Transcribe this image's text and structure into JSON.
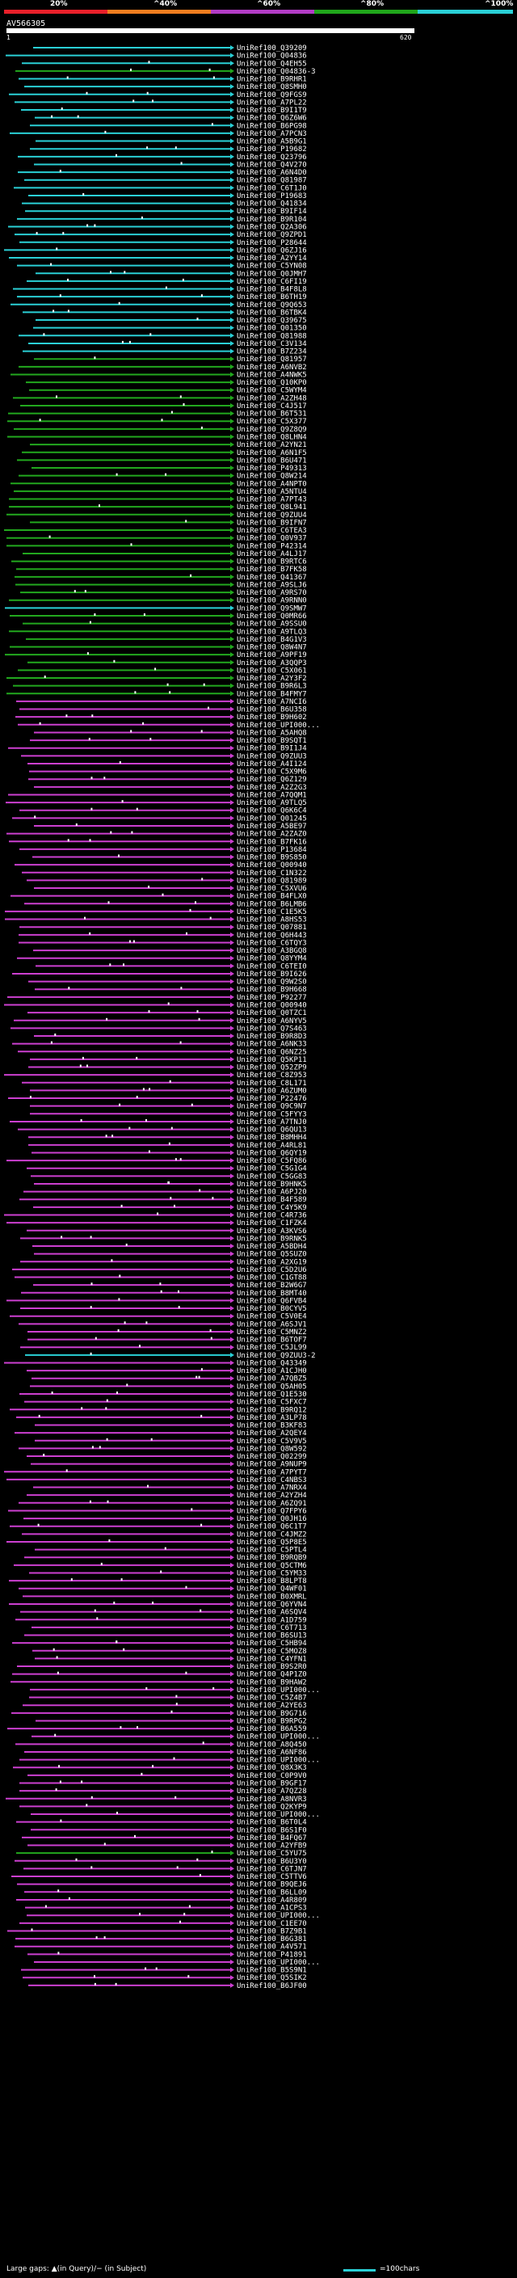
{
  "query_name": "AV566305",
  "ruler": {
    "start": "1",
    "end": "620"
  },
  "legend": {
    "ticks": [
      "20%",
      "^40%",
      "^60%",
      "^80%",
      "^100%"
    ],
    "colors": [
      "#e8202a",
      "#f07d1f",
      "#b23cc5",
      "#20a61b",
      "#2ad0d6"
    ]
  },
  "footer": {
    "gaps_text": "Large gaps: ▲(in Query)/− (in Subject)",
    "scale_text": "=100chars"
  },
  "hit_colors": {
    "cyan": "#2ad0d6",
    "green": "#22a81e",
    "magenta": "#cc3fd0",
    "teal_dark": "#116a6e"
  },
  "hits": [
    {
      "label": "UniRef100_Q39209",
      "c": "cyan"
    },
    {
      "label": "UniRef100_Q04836",
      "c": "cyan"
    },
    {
      "label": "UniRef100_Q4EH55",
      "c": "cyan"
    },
    {
      "label": "UniRef100_Q04836-3",
      "c": "green"
    },
    {
      "label": "UniRef100_B9RHR1",
      "c": "cyan"
    },
    {
      "label": "UniRef100_Q8SMH0",
      "c": "cyan"
    },
    {
      "label": "UniRef100_Q9FGS9",
      "c": "cyan"
    },
    {
      "label": "UniRef100_A7PL22",
      "c": "cyan"
    },
    {
      "label": "UniRef100_B9I1T9",
      "c": "cyan"
    },
    {
      "label": "UniRef100_Q6Z6W6",
      "c": "cyan"
    },
    {
      "label": "UniRef100_B6PG98",
      "c": "cyan"
    },
    {
      "label": "UniRef100_A7PCN3",
      "c": "cyan"
    },
    {
      "label": "UniRef100_A5B9G1",
      "c": "cyan"
    },
    {
      "label": "UniRef100_P19682",
      "c": "cyan"
    },
    {
      "label": "UniRef100_Q23796",
      "c": "cyan"
    },
    {
      "label": "UniRef100_Q4V270",
      "c": "cyan"
    },
    {
      "label": "UniRef100_A6N4D0",
      "c": "cyan"
    },
    {
      "label": "UniRef100_Q81987",
      "c": "cyan"
    },
    {
      "label": "UniRef100_C6T1J0",
      "c": "cyan"
    },
    {
      "label": "UniRef100_P19683",
      "c": "cyan"
    },
    {
      "label": "UniRef100_Q41834",
      "c": "cyan"
    },
    {
      "label": "UniRef100_B9IF14",
      "c": "cyan"
    },
    {
      "label": "UniRef100_B9R104",
      "c": "cyan"
    },
    {
      "label": "UniRef100_Q2A306",
      "c": "cyan"
    },
    {
      "label": "UniRef100_Q9ZPD1",
      "c": "cyan"
    },
    {
      "label": "UniRef100_P28644",
      "c": "cyan"
    },
    {
      "label": "UniRef100_Q6ZJ16",
      "c": "cyan"
    },
    {
      "label": "UniRef100_A2YY14",
      "c": "cyan"
    },
    {
      "label": "UniRef100_C5YN08",
      "c": "cyan"
    },
    {
      "label": "UniRef100_Q0JMH7",
      "c": "cyan"
    },
    {
      "label": "UniRef100_C6FI19",
      "c": "cyan"
    },
    {
      "label": "UniRef100_B4F8L8",
      "c": "cyan"
    },
    {
      "label": "UniRef100_B6TH19",
      "c": "cyan"
    },
    {
      "label": "UniRef100_Q9Q653",
      "c": "cyan"
    },
    {
      "label": "UniRef100_B6TBK4",
      "c": "cyan"
    },
    {
      "label": "UniRef100_Q39675",
      "c": "cyan"
    },
    {
      "label": "UniRef100_Q01350",
      "c": "cyan"
    },
    {
      "label": "UniRef100_Q81988",
      "c": "cyan"
    },
    {
      "label": "UniRef100_C3V134",
      "c": "cyan"
    },
    {
      "label": "UniRef100_B7Z234",
      "c": "cyan"
    },
    {
      "label": "UniRef100_Q81957",
      "c": "green"
    },
    {
      "label": "UniRef100_A6NVB2",
      "c": "green"
    },
    {
      "label": "UniRef100_A4NWK5",
      "c": "green"
    },
    {
      "label": "UniRef100_Q10KP0",
      "c": "green"
    },
    {
      "label": "UniRef100_C5WYM4",
      "c": "green"
    },
    {
      "label": "UniRef100_A2ZH48",
      "c": "green"
    },
    {
      "label": "UniRef100_C4J517",
      "c": "green"
    },
    {
      "label": "UniRef100_B6T531",
      "c": "green"
    },
    {
      "label": "UniRef100_C5X377",
      "c": "green"
    },
    {
      "label": "UniRef100_Q9Z8Q9",
      "c": "green"
    },
    {
      "label": "UniRef100_Q8LHN4",
      "c": "green"
    },
    {
      "label": "UniRef100_A2YN21",
      "c": "green"
    },
    {
      "label": "UniRef100_A6N1F5",
      "c": "green"
    },
    {
      "label": "UniRef100_B6U471",
      "c": "green"
    },
    {
      "label": "UniRef100_P49313",
      "c": "green"
    },
    {
      "label": "UniRef100_Q8W214",
      "c": "green"
    },
    {
      "label": "UniRef100_A4NPT0",
      "c": "green"
    },
    {
      "label": "UniRef100_A5NTU4",
      "c": "green"
    },
    {
      "label": "UniRef100_A7PT43",
      "c": "green"
    },
    {
      "label": "UniRef100_Q8L941",
      "c": "green"
    },
    {
      "label": "UniRef100_Q9ZUU4",
      "c": "green"
    },
    {
      "label": "UniRef100_B9IFN7",
      "c": "green"
    },
    {
      "label": "UniRef100_C6TEA3",
      "c": "green"
    },
    {
      "label": "UniRef100_Q0V937",
      "c": "green"
    },
    {
      "label": "UniRef100_P42314",
      "c": "green"
    },
    {
      "label": "UniRef100_A4LJ17",
      "c": "green"
    },
    {
      "label": "UniRef100_B9RTC6",
      "c": "green"
    },
    {
      "label": "UniRef100_B7FK58",
      "c": "green"
    },
    {
      "label": "UniRef100_Q41367",
      "c": "green"
    },
    {
      "label": "UniRef100_A9SLJ6",
      "c": "green"
    },
    {
      "label": "UniRef100_A9RS70",
      "c": "green"
    },
    {
      "label": "UniRef100_A9RNN0",
      "c": "green"
    },
    {
      "label": "UniRef100_Q9SMW7",
      "c": "cyan"
    },
    {
      "label": "UniRef100_Q0MR66",
      "c": "green"
    },
    {
      "label": "UniRef100_A9SSU0",
      "c": "green"
    },
    {
      "label": "UniRef100_A9TLQ3",
      "c": "green"
    },
    {
      "label": "UniRef100_B4G1V3",
      "c": "green"
    },
    {
      "label": "UniRef100_Q8W4N7",
      "c": "green"
    },
    {
      "label": "UniRef100_A9PF19",
      "c": "green"
    },
    {
      "label": "UniRef100_A3QQP3",
      "c": "green"
    },
    {
      "label": "UniRef100_C5X061",
      "c": "green"
    },
    {
      "label": "UniRef100_A2Y3F2",
      "c": "green"
    },
    {
      "label": "UniRef100_B9R6L3",
      "c": "green"
    },
    {
      "label": "UniRef100_B4FMY7",
      "c": "green"
    },
    {
      "label": "UniRef100_A7NCI6",
      "c": "magenta"
    },
    {
      "label": "UniRef100_B6U358",
      "c": "magenta"
    },
    {
      "label": "UniRef100_B9H602",
      "c": "magenta"
    },
    {
      "label": "UniRef100_UPI000...",
      "c": "magenta"
    },
    {
      "label": "UniRef100_A5AHQ8",
      "c": "magenta"
    },
    {
      "label": "UniRef100_B9SQT1",
      "c": "magenta"
    },
    {
      "label": "UniRef100_B9I1J4",
      "c": "magenta"
    },
    {
      "label": "UniRef100_Q9ZUU3",
      "c": "magenta"
    },
    {
      "label": "UniRef100_A4I124",
      "c": "magenta"
    },
    {
      "label": "UniRef100_C5X9M6",
      "c": "magenta"
    },
    {
      "label": "UniRef100_Q6Z129",
      "c": "magenta"
    },
    {
      "label": "UniRef100_A2Z2G3",
      "c": "magenta"
    },
    {
      "label": "UniRef100_A7QQM1",
      "c": "magenta"
    },
    {
      "label": "UniRef100_A9TLQ5",
      "c": "magenta"
    },
    {
      "label": "UniRef100_Q6K6C4",
      "c": "magenta"
    },
    {
      "label": "UniRef100_Q01245",
      "c": "magenta"
    },
    {
      "label": "UniRef100_A5BE97",
      "c": "magenta"
    },
    {
      "label": "UniRef100_A2ZAZ0",
      "c": "magenta"
    },
    {
      "label": "UniRef100_B7FK16",
      "c": "magenta"
    },
    {
      "label": "UniRef100_P13684",
      "c": "magenta"
    },
    {
      "label": "UniRef100_B9S850",
      "c": "magenta"
    },
    {
      "label": "UniRef100_Q00940",
      "c": "magenta"
    },
    {
      "label": "UniRef100_C1N322",
      "c": "magenta"
    },
    {
      "label": "UniRef100_Q81989",
      "c": "magenta"
    },
    {
      "label": "UniRef100_C5XVU6",
      "c": "magenta"
    },
    {
      "label": "UniRef100_B4FLX0",
      "c": "magenta"
    },
    {
      "label": "UniRef100_B6LMB6",
      "c": "magenta"
    },
    {
      "label": "UniRef100_C1E5K5",
      "c": "magenta"
    },
    {
      "label": "UniRef100_A8HS53",
      "c": "magenta"
    },
    {
      "label": "UniRef100_Q07881",
      "c": "magenta"
    },
    {
      "label": "UniRef100_Q6H443",
      "c": "magenta"
    },
    {
      "label": "UniRef100_C6TQY3",
      "c": "magenta"
    },
    {
      "label": "UniRef100_A3BGQ8",
      "c": "magenta"
    },
    {
      "label": "UniRef100_Q8YYM4",
      "c": "magenta"
    },
    {
      "label": "UniRef100_C6TEI0",
      "c": "magenta"
    },
    {
      "label": "UniRef100_B9I626",
      "c": "magenta"
    },
    {
      "label": "UniRef100_Q9W2S0",
      "c": "magenta"
    },
    {
      "label": "UniRef100_B9H668",
      "c": "magenta"
    },
    {
      "label": "UniRef100_P92277",
      "c": "magenta"
    },
    {
      "label": "UniRef100_Q00940",
      "c": "magenta"
    },
    {
      "label": "UniRef100_Q0TZC1",
      "c": "magenta"
    },
    {
      "label": "UniRef100_A6NYV5",
      "c": "magenta"
    },
    {
      "label": "UniRef100_Q7S463",
      "c": "magenta"
    },
    {
      "label": "UniRef100_B9R8D3",
      "c": "magenta"
    },
    {
      "label": "UniRef100_A6NK33",
      "c": "magenta"
    },
    {
      "label": "UniRef100_Q6NZ25",
      "c": "magenta"
    },
    {
      "label": "UniRef100_Q5KP11",
      "c": "magenta"
    },
    {
      "label": "UniRef100_Q52ZP9",
      "c": "magenta"
    },
    {
      "label": "UniRef100_C8Z953",
      "c": "magenta"
    },
    {
      "label": "UniRef100_C8L171",
      "c": "magenta"
    },
    {
      "label": "UniRef100_A6ZUM0",
      "c": "magenta"
    },
    {
      "label": "UniRef100_P22476",
      "c": "magenta"
    },
    {
      "label": "UniRef100_Q9C9N7",
      "c": "magenta"
    },
    {
      "label": "UniRef100_C5FYY3",
      "c": "magenta"
    },
    {
      "label": "UniRef100_A7TNJ0",
      "c": "magenta"
    },
    {
      "label": "UniRef100_Q6QU13",
      "c": "magenta"
    },
    {
      "label": "UniRef100_B8MHH4",
      "c": "magenta"
    },
    {
      "label": "UniRef100_A4RL81",
      "c": "magenta"
    },
    {
      "label": "UniRef100_Q6QY19",
      "c": "magenta"
    },
    {
      "label": "UniRef100_C5FQ86",
      "c": "magenta"
    },
    {
      "label": "UniRef100_C5G1G4",
      "c": "magenta"
    },
    {
      "label": "UniRef100_C5GG83",
      "c": "magenta"
    },
    {
      "label": "UniRef100_B9HNK5",
      "c": "magenta"
    },
    {
      "label": "UniRef100_A6PJ20",
      "c": "magenta"
    },
    {
      "label": "UniRef100_B4F589",
      "c": "magenta"
    },
    {
      "label": "UniRef100_C4Y5K9",
      "c": "magenta"
    },
    {
      "label": "UniRef100_C4R736",
      "c": "magenta"
    },
    {
      "label": "UniRef100_C1FZK4",
      "c": "magenta"
    },
    {
      "label": "UniRef100_A3KVS6",
      "c": "magenta"
    },
    {
      "label": "UniRef100_B9RNK5",
      "c": "magenta"
    },
    {
      "label": "UniRef100_A5BDH4",
      "c": "magenta"
    },
    {
      "label": "UniRef100_Q5SUZ0",
      "c": "magenta"
    },
    {
      "label": "UniRef100_A2XG19",
      "c": "magenta"
    },
    {
      "label": "UniRef100_C5D2U6",
      "c": "magenta"
    },
    {
      "label": "UniRef100_C1GT88",
      "c": "magenta"
    },
    {
      "label": "UniRef100_B2W6G7",
      "c": "magenta"
    },
    {
      "label": "UniRef100_B8MT40",
      "c": "magenta"
    },
    {
      "label": "UniRef100_Q6FVB4",
      "c": "magenta"
    },
    {
      "label": "UniRef100_B0CYV5",
      "c": "magenta"
    },
    {
      "label": "UniRef100_C5V0E4",
      "c": "magenta"
    },
    {
      "label": "UniRef100_A6SJV1",
      "c": "magenta"
    },
    {
      "label": "UniRef100_C5MNZ2",
      "c": "magenta"
    },
    {
      "label": "UniRef100_B6TOF7",
      "c": "magenta"
    },
    {
      "label": "UniRef100_C5JL99",
      "c": "magenta"
    },
    {
      "label": "UniRef100_Q9ZUU3-2",
      "c": "cyan"
    },
    {
      "label": "UniRef100_Q43349",
      "c": "magenta"
    },
    {
      "label": "UniRef100_A1CJH0",
      "c": "magenta"
    },
    {
      "label": "UniRef100_A7QBZ5",
      "c": "magenta"
    },
    {
      "label": "UniRef100_Q5AH05",
      "c": "magenta"
    },
    {
      "label": "UniRef100_Q1E530",
      "c": "magenta"
    },
    {
      "label": "UniRef100_C5FXC7",
      "c": "magenta"
    },
    {
      "label": "UniRef100_B9RQ12",
      "c": "magenta"
    },
    {
      "label": "UniRef100_A3LP78",
      "c": "magenta"
    },
    {
      "label": "UniRef100_B3KF83",
      "c": "magenta"
    },
    {
      "label": "UniRef100_A2QEY4",
      "c": "magenta"
    },
    {
      "label": "UniRef100_C5V9V5",
      "c": "magenta"
    },
    {
      "label": "UniRef100_Q8W592",
      "c": "magenta"
    },
    {
      "label": "UniRef100_Q02299",
      "c": "magenta"
    },
    {
      "label": "UniRef100_A9NUP9",
      "c": "magenta"
    },
    {
      "label": "UniRef100_A7PYT7",
      "c": "magenta"
    },
    {
      "label": "UniRef100_C4NBS3",
      "c": "magenta"
    },
    {
      "label": "UniRef100_A7NRX4",
      "c": "magenta"
    },
    {
      "label": "UniRef100_A2YZH4",
      "c": "magenta"
    },
    {
      "label": "UniRef100_A6ZQ91",
      "c": "magenta"
    },
    {
      "label": "UniRef100_Q7FPY6",
      "c": "magenta"
    },
    {
      "label": "UniRef100_Q0JH16",
      "c": "magenta"
    },
    {
      "label": "UniRef100_Q6C1T7",
      "c": "magenta"
    },
    {
      "label": "UniRef100_C4JMZ2",
      "c": "magenta"
    },
    {
      "label": "UniRef100_Q5P8E5",
      "c": "magenta"
    },
    {
      "label": "UniRef100_C5PTL4",
      "c": "magenta"
    },
    {
      "label": "UniRef100_B9RQB9",
      "c": "magenta"
    },
    {
      "label": "UniRef100_Q5CTM6",
      "c": "magenta"
    },
    {
      "label": "UniRef100_C5YM33",
      "c": "magenta"
    },
    {
      "label": "UniRef100_B8LPT8",
      "c": "magenta"
    },
    {
      "label": "UniRef100_Q4WF01",
      "c": "magenta"
    },
    {
      "label": "UniRef100_B0XMRL",
      "c": "magenta"
    },
    {
      "label": "UniRef100_Q6YVN4",
      "c": "magenta"
    },
    {
      "label": "UniRef100_A6SQV4",
      "c": "magenta"
    },
    {
      "label": "UniRef100_A1D759",
      "c": "magenta"
    },
    {
      "label": "UniRef100_C6T713",
      "c": "magenta"
    },
    {
      "label": "UniRef100_B6SU13",
      "c": "magenta"
    },
    {
      "label": "UniRef100_C5HB94",
      "c": "magenta"
    },
    {
      "label": "UniRef100_C5MOZ8",
      "c": "magenta"
    },
    {
      "label": "UniRef100_C4YFN1",
      "c": "magenta"
    },
    {
      "label": "UniRef100_B9S2R0",
      "c": "magenta"
    },
    {
      "label": "UniRef100_Q4P1Z0",
      "c": "magenta"
    },
    {
      "label": "UniRef100_B9HAW2",
      "c": "magenta"
    },
    {
      "label": "UniRef100_UPI000...",
      "c": "magenta"
    },
    {
      "label": "UniRef100_C5Z4B7",
      "c": "magenta"
    },
    {
      "label": "UniRef100_A2YE63",
      "c": "magenta"
    },
    {
      "label": "UniRef100_B9G716",
      "c": "magenta"
    },
    {
      "label": "UniRef100_B9RPG2",
      "c": "magenta"
    },
    {
      "label": "UniRef100_B6A559",
      "c": "magenta"
    },
    {
      "label": "UniRef100_UPI000...",
      "c": "magenta"
    },
    {
      "label": "UniRef100_A8Q450",
      "c": "magenta"
    },
    {
      "label": "UniRef100_A6NF86",
      "c": "magenta"
    },
    {
      "label": "UniRef100_UPI000...",
      "c": "magenta"
    },
    {
      "label": "UniRef100_Q8X3K3",
      "c": "magenta"
    },
    {
      "label": "UniRef100_C0P9V0",
      "c": "magenta"
    },
    {
      "label": "UniRef100_B9GF17",
      "c": "magenta"
    },
    {
      "label": "UniRef100_A7QZ28",
      "c": "magenta"
    },
    {
      "label": "UniRef100_A8NVR3",
      "c": "magenta"
    },
    {
      "label": "UniRef100_Q2KYP9",
      "c": "magenta"
    },
    {
      "label": "UniRef100_UPI000...",
      "c": "magenta"
    },
    {
      "label": "UniRef100_B6T0L4",
      "c": "magenta"
    },
    {
      "label": "UniRef100_B6S1F0",
      "c": "magenta"
    },
    {
      "label": "UniRef100_B4FQ67",
      "c": "magenta"
    },
    {
      "label": "UniRef100_A2YFB9",
      "c": "magenta"
    },
    {
      "label": "UniRef100_C5YU75",
      "c": "green"
    },
    {
      "label": "UniRef100_B6U3Y0",
      "c": "magenta"
    },
    {
      "label": "UniRef100_C6TJN7",
      "c": "magenta"
    },
    {
      "label": "UniRef100_C5TTV6",
      "c": "magenta"
    },
    {
      "label": "UniRef100_B9QEJ6",
      "c": "magenta"
    },
    {
      "label": "UniRef100_B6LL09",
      "c": "magenta"
    },
    {
      "label": "UniRef100_A4R809",
      "c": "magenta"
    },
    {
      "label": "UniRef100_A1CPS3",
      "c": "magenta"
    },
    {
      "label": "UniRef100_UPI000...",
      "c": "magenta"
    },
    {
      "label": "UniRef100_C1EE70",
      "c": "magenta"
    },
    {
      "label": "UniRef100_B7Z9B1",
      "c": "magenta"
    },
    {
      "label": "UniRef100_B6G381",
      "c": "magenta"
    },
    {
      "label": "UniRef100_A4V571",
      "c": "magenta"
    },
    {
      "label": "UniRef100_P41891",
      "c": "magenta"
    },
    {
      "label": "UniRef100_UPI000...",
      "c": "magenta"
    },
    {
      "label": "UniRef100_B5S9N1",
      "c": "magenta"
    },
    {
      "label": "UniRef100_Q5SIK2",
      "c": "magenta"
    },
    {
      "label": "UniRef100_B6JF00",
      "c": "magenta"
    }
  ]
}
